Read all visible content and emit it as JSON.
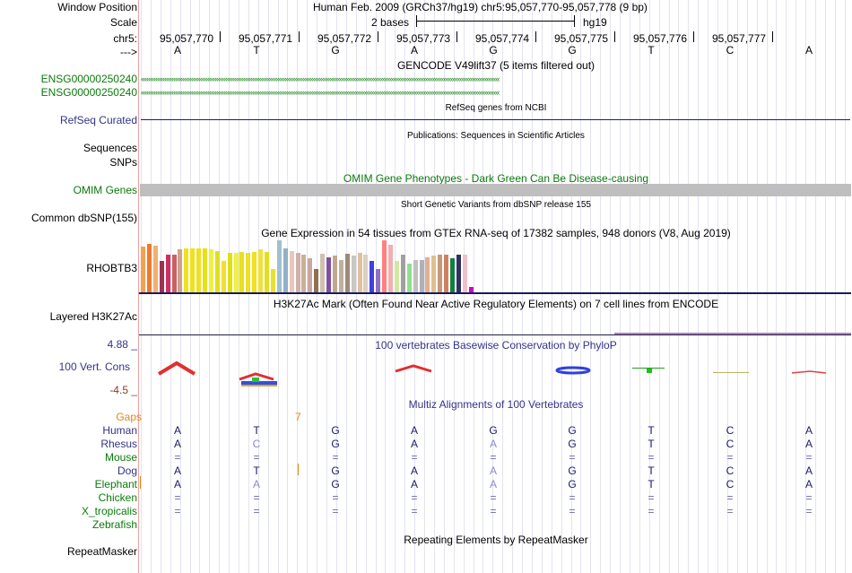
{
  "header": {
    "window_position_label": "Window Position",
    "window_position_value": "Human Feb. 2009 (GRCh37/hg19)   chr5:95,057,770-95,057,778 (9 bp)",
    "scale_label": "Scale",
    "scale_value": "2 bases",
    "scale_db": "hg19",
    "chrom_label": "chr5:",
    "strand_label": "--->",
    "positions": [
      "95,057,770",
      "95,057,771",
      "95,057,772",
      "95,057,773",
      "95,057,774",
      "95,057,775",
      "95,057,776",
      "95,057,777"
    ],
    "bases": [
      "A",
      "T",
      "G",
      "A",
      "G",
      "G",
      "T",
      "C",
      "A"
    ]
  },
  "tracks": {
    "gencode": {
      "title": "GENCODE V49lift37 (5 items filtered out)",
      "items": [
        "ENSG00000250240",
        "ENSG00000250240"
      ]
    },
    "refseq": {
      "title": "RefSeq genes from NCBI",
      "label": "RefSeq Curated"
    },
    "publications": {
      "title": "Publications: Sequences in Scientific Articles",
      "labels": [
        "Sequences",
        "SNPs"
      ]
    },
    "omim": {
      "title": "OMIM Gene Phenotypes - Dark Green Can Be Disease-causing",
      "label": "OMIM Genes"
    },
    "dbsnp": {
      "title": "Short Genetic Variants from dbSNP release 155",
      "label": "Common dbSNP(155)"
    },
    "gtex": {
      "title": "Gene Expression in 54 tissues from GTEx RNA-seq of 17382 samples, 948 donors (V8, Aug 2019)",
      "label": "RHOBTB3"
    },
    "h3k27ac": {
      "title": "H3K27Ac Mark (Often Found Near Active Regulatory Elements) on 7 cell lines from ENCODE",
      "label": "Layered H3K27Ac"
    },
    "phylop": {
      "title": "100 vertebrates Basewise Conservation by PhyloP",
      "label": "100 Vert. Cons",
      "max": "4.88 _",
      "min": "-4.5 _"
    },
    "multiz": {
      "title": "Multiz Alignments of 100 Vertebrates",
      "gaps_label": "Gaps",
      "gap_marker": "7",
      "species": [
        {
          "name": "Human",
          "bases": [
            "A",
            "T",
            "G",
            "A",
            "G",
            "G",
            "T",
            "C",
            "A"
          ]
        },
        {
          "name": "Rhesus",
          "bases": [
            "A",
            "C",
            "G",
            "A",
            "A",
            "G",
            "T",
            "C",
            "A"
          ]
        },
        {
          "name": "Mouse",
          "bases": [
            "=",
            "=",
            "=",
            "=",
            "=",
            "=",
            "=",
            "=",
            "="
          ]
        },
        {
          "name": "Dog",
          "bases": [
            "A",
            "T",
            "G",
            "A",
            "A",
            "G",
            "T",
            "C",
            "A"
          ]
        },
        {
          "name": "Elephant",
          "bases": [
            "A",
            "A",
            "G",
            "A",
            "A",
            "G",
            "T",
            "C",
            "A"
          ]
        },
        {
          "name": "Chicken",
          "bases": [
            "=",
            "=",
            "=",
            "=",
            "=",
            "=",
            "=",
            "=",
            "="
          ]
        },
        {
          "name": "X_tropicalis",
          "bases": [
            "=",
            "=",
            "=",
            "=",
            "=",
            "=",
            "=",
            "=",
            "="
          ]
        },
        {
          "name": "Zebrafish",
          "bases": [
            "",
            "",
            "",
            "",
            "",
            "",
            "",
            "",
            ""
          ]
        }
      ]
    },
    "repeatmasker": {
      "title": "Repeating Elements by RepeatMasker",
      "label": "RepeatMasker"
    }
  },
  "gtex_colors": [
    "#f5a050",
    "#f07830",
    "#f0b070",
    "#a03050",
    "#d03060",
    "#c86060",
    "#d0a090",
    "#f0e020",
    "#f0e020",
    "#f0e020",
    "#e8e018",
    "#f0f040",
    "#e0e020",
    "#f0e030",
    "#e0e010",
    "#f0f040",
    "#e8e020",
    "#f0e020",
    "#f0e020",
    "#f0e040",
    "#e0e020",
    "#e8e030",
    "#a0c0d0",
    "#90b0c8",
    "#e8c8b8",
    "#d0b0a8",
    "#c8b098",
    "#c8a8a0",
    "#907050",
    "#d0c0b0",
    "#8050a0",
    "#c0a890",
    "#c0b0a0",
    "#a08878",
    "#c8c8c0",
    "#e0c0a0",
    "#d8d0c0",
    "#4040e0",
    "#9070c0",
    "#ff8080",
    "#f0b0b0",
    "#d0e8a0",
    "#a0a0a0",
    "#90e090",
    "#c0c0c0",
    "#b0b0b8",
    "#e0b090",
    "#e0c090",
    "#c89878",
    "#d08060",
    "#108040",
    "#303060",
    "#f0c0c8",
    "#d000d0"
  ],
  "gtex_values": [
    0.88,
    0.93,
    0.9,
    0.6,
    0.72,
    0.72,
    0.82,
    0.85,
    0.85,
    0.85,
    0.85,
    0.82,
    0.8,
    0.6,
    0.75,
    0.75,
    0.77,
    0.76,
    0.77,
    0.82,
    0.78,
    0.44,
    1.0,
    0.85,
    0.8,
    0.75,
    0.72,
    0.65,
    0.45,
    0.74,
    0.68,
    0.7,
    0.62,
    0.74,
    0.7,
    0.76,
    0.72,
    0.6,
    0.45,
    1.0,
    0.92,
    0.6,
    0.72,
    0.55,
    0.62,
    0.62,
    0.68,
    0.7,
    0.72,
    0.72,
    0.65,
    0.72,
    0.72,
    0.1
  ]
}
